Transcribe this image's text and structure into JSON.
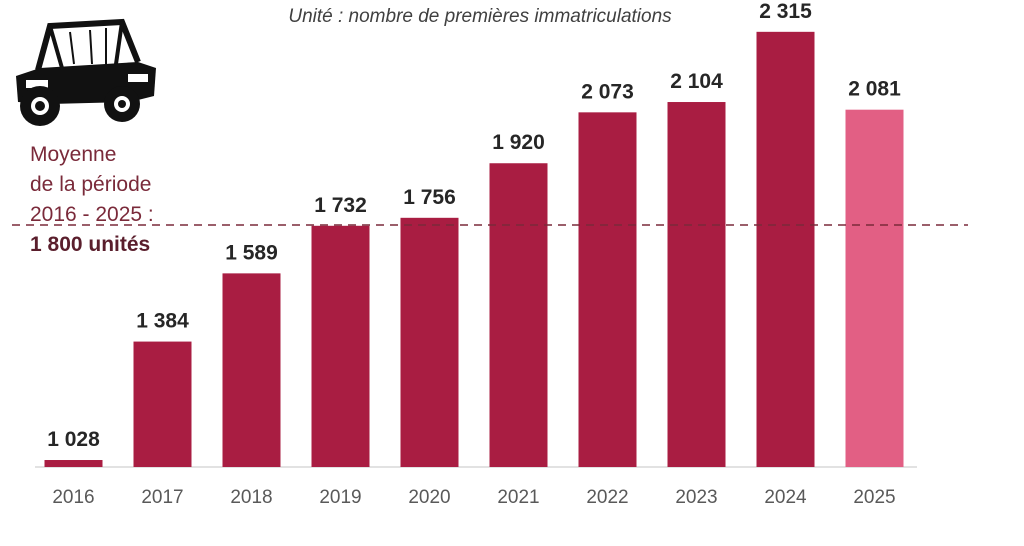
{
  "unit_note": "Unité : nombre de premières immatriculations",
  "average": {
    "label_line1": "Moyenne",
    "label_line2": "de la période",
    "label_line3": "2016 - 2025 :",
    "value_label": "1 800 unités",
    "value": 1800
  },
  "colors": {
    "bar": "#a91d42",
    "bar_highlight": "#e25f84",
    "average_line": "#7a2a3a",
    "text": "#262626",
    "axis_text": "#595959"
  },
  "chart_data": {
    "type": "bar",
    "categories": [
      "2016",
      "2017",
      "2018",
      "2019",
      "2020",
      "2021",
      "2022",
      "2023",
      "2024",
      "2025"
    ],
    "values": [
      1028,
      1384,
      1589,
      1732,
      1756,
      1920,
      2073,
      2104,
      2315,
      2081
    ],
    "data_labels": [
      "1 028",
      "1 384",
      "1 589",
      "1 732",
      "1 756",
      "1 920",
      "2 073",
      "2 104",
      "2 315",
      "2 081"
    ],
    "highlight_category": "2025",
    "ylim": [
      900,
      2400
    ],
    "grid": false,
    "reference_line": 1800
  },
  "icon": "utility-vehicle-icon"
}
